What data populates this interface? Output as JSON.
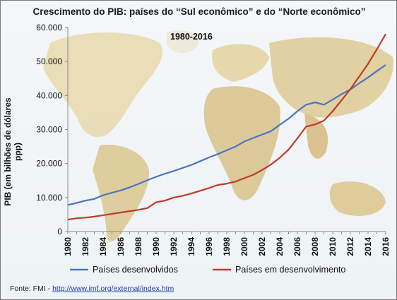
{
  "chart_data": {
    "type": "line",
    "title": "Crescimento do PIB: países do “Sul econômico” e do “Norte econômico”",
    "subtitle": "1980-2016",
    "xlabel": "",
    "ylabel": "PIB (em bilhões de dólares ppp)",
    "x": [
      1980,
      1981,
      1982,
      1983,
      1984,
      1985,
      1986,
      1987,
      1988,
      1989,
      1990,
      1991,
      1992,
      1993,
      1994,
      1995,
      1996,
      1997,
      1998,
      1999,
      2000,
      2001,
      2002,
      2003,
      2004,
      2005,
      2006,
      2007,
      2008,
      2009,
      2010,
      2011,
      2012,
      2013,
      2014,
      2015,
      2016
    ],
    "xticks": [
      "1980",
      "1982",
      "1984",
      "1986",
      "1988",
      "1990",
      "1992",
      "1994",
      "1996",
      "1998",
      "2000",
      "2002",
      "2004",
      "2006",
      "2008",
      "2010",
      "2012",
      "2014",
      "2016"
    ],
    "yticks": [
      "0",
      "10.000",
      "20.000",
      "30.000",
      "40.000",
      "50.000",
      "60.000"
    ],
    "ylim": [
      0,
      60000
    ],
    "grid": false,
    "legend_position": "bottom",
    "series": [
      {
        "name": "Países desenvolvidos",
        "color": "#4a76c2",
        "values": [
          7800,
          8400,
          9100,
          9600,
          10700,
          11400,
          12100,
          13000,
          14000,
          15100,
          16100,
          17000,
          17800,
          18700,
          19600,
          20700,
          21800,
          22800,
          23900,
          25000,
          26500,
          27500,
          28500,
          29500,
          31400,
          33200,
          35400,
          37300,
          38000,
          37300,
          38800,
          40400,
          41800,
          43600,
          45300,
          47200,
          49000
        ]
      },
      {
        "name": "Países em desenvolvimento",
        "color": "#c0392b",
        "values": [
          3500,
          3900,
          4100,
          4400,
          4800,
          5200,
          5600,
          6000,
          6400,
          6900,
          8600,
          9100,
          10000,
          10500,
          11200,
          12000,
          12800,
          13700,
          14100,
          14700,
          15700,
          16700,
          18100,
          19700,
          21700,
          24100,
          27400,
          30900,
          31500,
          32600,
          35400,
          38600,
          41900,
          45600,
          49300,
          53600,
          58100
        ]
      }
    ]
  },
  "source": {
    "prefix": "Fonte: FMI - ",
    "link": "http://www.imf.org/external/index.htm"
  },
  "colors": {
    "axis": "#8a8a8a",
    "map_land": "#e8d8a6",
    "map_sea": "#f3f7fa"
  }
}
